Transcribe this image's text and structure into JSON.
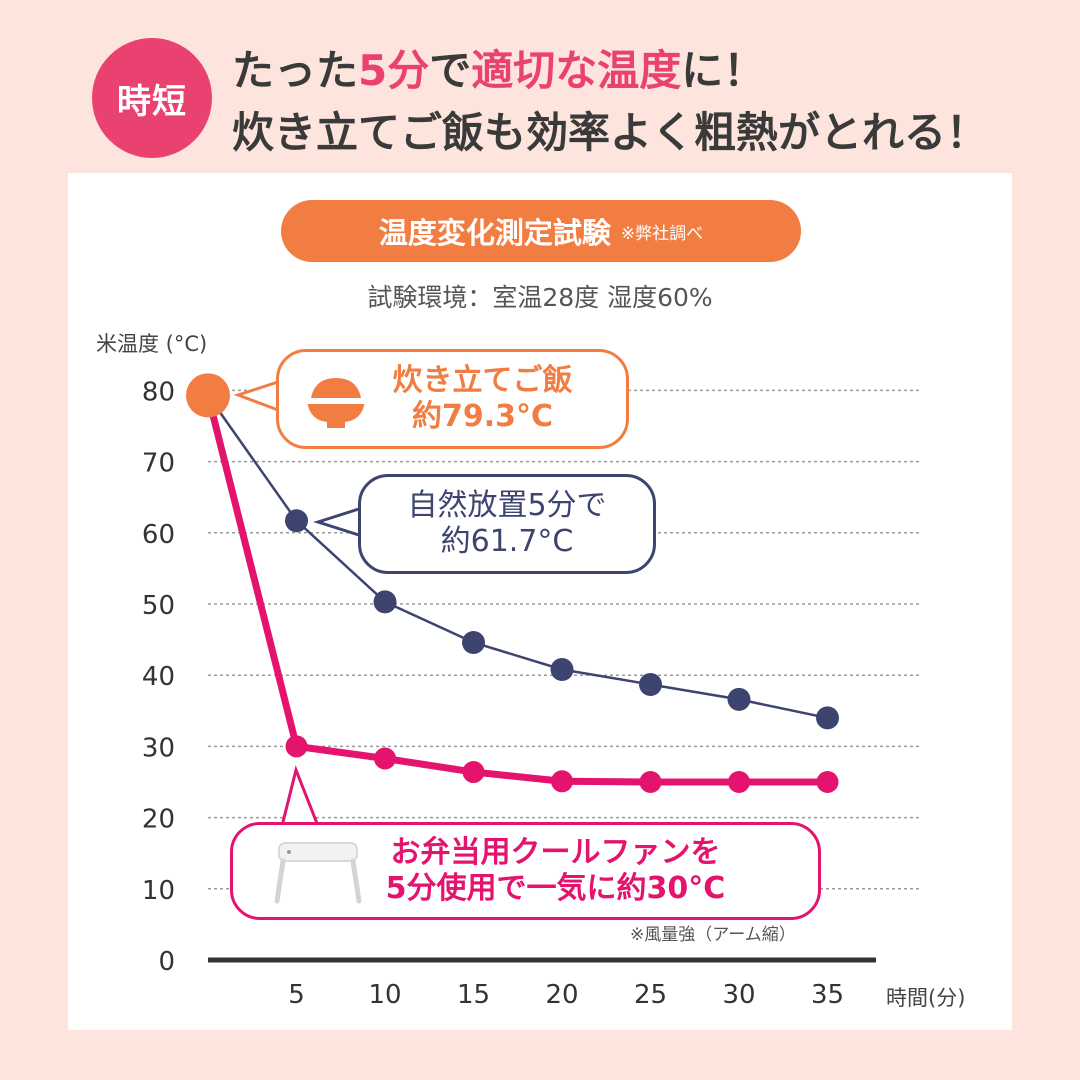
{
  "header": {
    "badge": "時短",
    "line1_a": "たった",
    "line1_b": "5分",
    "line1_c": "で",
    "line1_d": "適切な温度",
    "line1_e": "に！",
    "line2": "炊き立てご飯も効率よく粗熱がとれる！"
  },
  "chart_data": {
    "type": "line",
    "title": "温度変化測定試験",
    "title_note": "※弊社調べ",
    "subtitle": "試験環境：室温28度 湿度60%",
    "ylabel": "米温度 (°C)",
    "xlabel": "時間(分)",
    "ylim": [
      0,
      80
    ],
    "yticks": [
      0,
      10,
      20,
      30,
      40,
      50,
      60,
      70,
      80
    ],
    "x": [
      0,
      5,
      10,
      15,
      20,
      25,
      30,
      35
    ],
    "xticks": [
      5,
      10,
      15,
      20,
      25,
      30,
      35
    ],
    "grid": true,
    "series": [
      {
        "name": "自然放置",
        "color": "#3d4470",
        "values": [
          79.3,
          61.7,
          50.3,
          44.6,
          40.8,
          38.7,
          36.6,
          34.0
        ]
      },
      {
        "name": "お弁当用クールファン",
        "color": "#e4146e",
        "values": [
          79.3,
          30.0,
          28.3,
          26.4,
          25.1,
          25.0,
          25.0,
          25.0
        ]
      }
    ],
    "start_point_color": "#f27d43",
    "footnote": "※風量強（アーム縮）"
  },
  "callouts": {
    "start": {
      "line1": "炊き立てご飯",
      "line2": "約79.3°C"
    },
    "natural": {
      "line1": "自然放置5分で",
      "line2": "約61.7°C"
    },
    "fan": {
      "line1": "お弁当用クールファンを",
      "line2": "5分使用で一気に約30°C"
    }
  }
}
